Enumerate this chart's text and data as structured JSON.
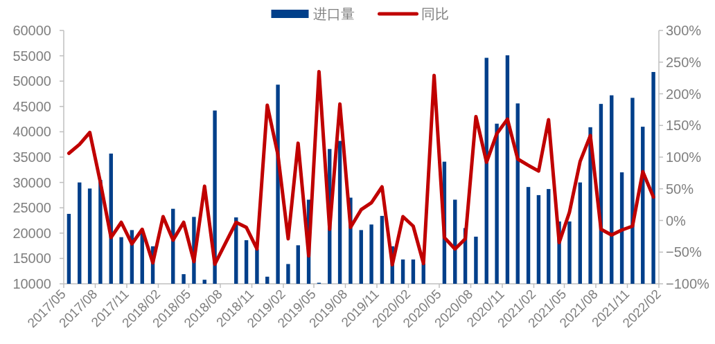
{
  "chart_data": {
    "type": "bar",
    "legend": "top",
    "grid": false,
    "x": [
      "2017-05-16",
      "2017-06-16",
      "2017-07-16",
      "2017-08-16",
      "2017-09-16",
      "2017-10-16",
      "2017-11-16",
      "2017-12-16",
      "2018-01-16",
      "2018-02-15",
      "2018-03-16",
      "2018-04-16",
      "2018-05-16",
      "2018-06-16",
      "2018-07-16",
      "2018-08-16",
      "2018-09-16",
      "2018-10-16",
      "2018-11-16",
      "2018-12-16",
      "2019-01-16",
      "2019-02-15",
      "2019-03-16",
      "2019-04-16",
      "2019-05-16",
      "2019-06-16",
      "2019-07-16",
      "2019-08-16",
      "2019-09-16",
      "2019-10-16",
      "2019-11-16",
      "2019-12-16",
      "2020-01-16",
      "2020-02-15",
      "2020-03-16",
      "2020-04-16",
      "2020-05-16",
      "2020-06-16",
      "2020-07-16",
      "2020-08-16",
      "2020-09-16",
      "2020-10-16",
      "2020-11-16",
      "2020-12-16",
      "2021-01-16",
      "2021-02-15",
      "2021-03-16",
      "2021-04-16",
      "2021-05-16",
      "2021-06-16",
      "2021-07-16",
      "2021-08-16",
      "2021-09-16",
      "2021-10-16",
      "2021-11-16",
      "2021-12-16",
      "2022-01-16"
    ],
    "xlim": [
      "2017-05-01",
      "2022-02-01"
    ],
    "xticks": [
      {
        "value": "2017-05-01",
        "label": "2017/05"
      },
      {
        "value": "2017-08-01",
        "label": "2017/08"
      },
      {
        "value": "2017-11-01",
        "label": "2017/11"
      },
      {
        "value": "2018-02-01",
        "label": "2018/02"
      },
      {
        "value": "2018-05-01",
        "label": "2018/05"
      },
      {
        "value": "2018-08-01",
        "label": "2018/08"
      },
      {
        "value": "2018-11-01",
        "label": "2018/11"
      },
      {
        "value": "2019-02-01",
        "label": "2019/02"
      },
      {
        "value": "2019-05-01",
        "label": "2019/05"
      },
      {
        "value": "2019-08-01",
        "label": "2019/08"
      },
      {
        "value": "2019-11-01",
        "label": "2019/11"
      },
      {
        "value": "2020-02-01",
        "label": "2020/02"
      },
      {
        "value": "2020-05-01",
        "label": "2020/05"
      },
      {
        "value": "2020-08-01",
        "label": "2020/08"
      },
      {
        "value": "2020-11-01",
        "label": "2020/11"
      },
      {
        "value": "2021-02-01",
        "label": "2021/02"
      },
      {
        "value": "2021-05-01",
        "label": "2021/05"
      },
      {
        "value": "2021-08-01",
        "label": "2021/08"
      },
      {
        "value": "2021-11-01",
        "label": "2021/11"
      },
      {
        "value": "2022-02-01",
        "label": "2022/02"
      }
    ],
    "ylim": [
      10000,
      60000
    ],
    "yticks": [
      10000,
      15000,
      20000,
      25000,
      30000,
      35000,
      40000,
      45000,
      50000,
      55000,
      60000
    ],
    "y2lim": [
      -100,
      300
    ],
    "y2ticks": [
      {
        "value": -100,
        "label": "−100%"
      },
      {
        "value": -50,
        "label": "−50%"
      },
      {
        "value": 0,
        "label": "0%"
      },
      {
        "value": 50,
        "label": "50%"
      },
      {
        "value": 100,
        "label": "100%"
      },
      {
        "value": 150,
        "label": "150%"
      },
      {
        "value": 200,
        "label": "200%"
      },
      {
        "value": 250,
        "label": "250%"
      },
      {
        "value": 300,
        "label": "300%"
      }
    ],
    "series": [
      {
        "name": "进口量",
        "color": "#003f8a",
        "values": [
          23800,
          30000,
          28800,
          30500,
          35700,
          19200,
          20600,
          20000,
          17400,
          null,
          24800,
          11900,
          23200,
          10800,
          44200,
          null,
          23100,
          18600,
          16800,
          11400,
          49300,
          13900,
          17600,
          26600,
          10200,
          36600,
          38200,
          27000,
          20600,
          21700,
          23400,
          17400,
          14800,
          14800,
          14000,
          null,
          34100,
          26600,
          21000,
          19300,
          54600,
          41600,
          55100,
          45600,
          29100,
          27500,
          28700,
          22300,
          22300,
          30000,
          40900,
          45500,
          47200,
          32000,
          46700,
          41000,
          51800
        ]
      },
      {
        "name": "同比",
        "type": "line",
        "axis": "y2",
        "color": "#c00000",
        "line_style": "solid",
        "values": [
          106,
          120,
          139,
          60,
          -27,
          -3,
          -37,
          -14,
          -67,
          6,
          -31,
          -3,
          -65,
          54,
          -69,
          -36,
          -3,
          -11,
          -45,
          182,
          104,
          -29,
          122,
          -56,
          235,
          -14,
          184,
          -11,
          17,
          28,
          53,
          -70,
          6,
          -9,
          -68,
          229,
          -27,
          -45,
          -29,
          164,
          92,
          137,
          160,
          97,
          87,
          78,
          159,
          -35,
          13,
          93,
          134,
          -14,
          -23,
          -15,
          -9,
          77,
          37
        ]
      }
    ]
  }
}
